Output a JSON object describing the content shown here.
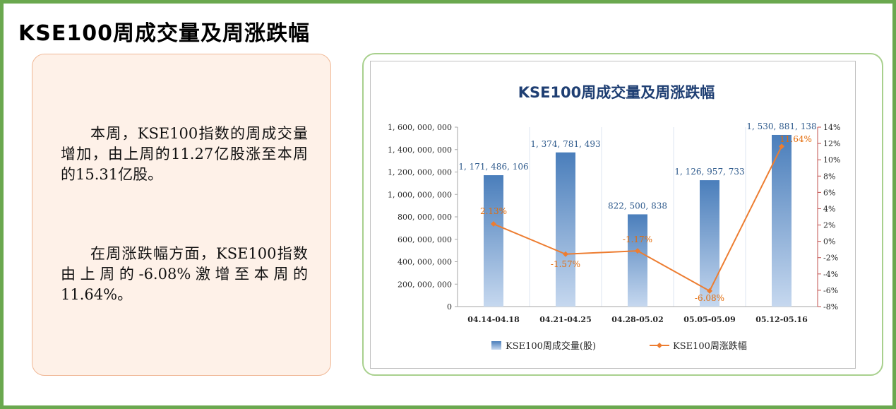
{
  "page_title": "KSE100周成交量及周涨跌幅",
  "text_panel": {
    "paragraph1": "本周，KSE100指数的周成交量增加，由上周的11.27亿股涨至本周的15.31亿股。",
    "paragraph2": "在周涨跌幅方面，KSE100指数由上周的-6.08%激增至本周的11.64%。"
  },
  "chart_data": {
    "type": "bar",
    "title": "KSE100周成交量及周涨跌幅",
    "categories": [
      "04.14-04.18",
      "04.21-04.25",
      "04.28-05.02",
      "05.05-05.09",
      "05.12-05.16"
    ],
    "series": [
      {
        "name": "KSE100周成交量(股)",
        "type": "bar",
        "axis": "left",
        "values": [
          1171486106,
          1374781493,
          822500838,
          1126957733,
          1530881138
        ],
        "labels": [
          "1, 171, 486, 106",
          "1, 374, 781, 493",
          "822, 500, 838",
          "1, 126, 957, 733",
          "1, 530, 881, 138"
        ],
        "color": "#4a7ebb"
      },
      {
        "name": "KSE100周涨跌幅",
        "type": "line",
        "axis": "right",
        "values": [
          2.13,
          -1.57,
          -1.17,
          -6.08,
          11.64
        ],
        "labels": [
          "2.13%",
          "-1.57%",
          "-1.17%",
          "-6.08%",
          "11.64%"
        ],
        "color": "#ed7d31"
      }
    ],
    "y_left": {
      "range": [
        0,
        1600000000
      ],
      "ticks": [
        "0",
        "200, 000, 000",
        "400, 000, 000",
        "600, 000, 000",
        "800, 000, 000",
        "1, 000, 000, 000",
        "1, 200, 000, 000",
        "1, 400, 000, 000",
        "1, 600, 000, 000"
      ]
    },
    "y_right": {
      "range": [
        -8,
        14
      ],
      "ticks": [
        "-8%",
        "-6%",
        "-4%",
        "-2%",
        "0%",
        "2%",
        "4%",
        "6%",
        "8%",
        "10%",
        "12%",
        "14%"
      ]
    },
    "grid": "vertical category separators",
    "legend_position": "bottom",
    "colors": {
      "bar": "#4a7ebb",
      "line": "#ed7d31",
      "title": "#1f3f73",
      "bar_label": "#2e5a8c",
      "line_label": "#e46c0a",
      "right_axis": "#c0504d"
    }
  }
}
